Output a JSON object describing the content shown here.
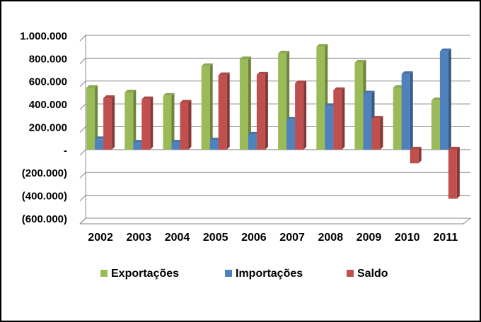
{
  "chart_data": {
    "type": "bar",
    "categories": [
      "2002",
      "2003",
      "2004",
      "2005",
      "2006",
      "2007",
      "2008",
      "2009",
      "2010",
      "2011"
    ],
    "series": [
      {
        "name": "Exportações",
        "color": "#9bbb59",
        "values": [
          540000,
          500000,
          470000,
          730000,
          790000,
          840000,
          900000,
          760000,
          540000,
          430000
        ]
      },
      {
        "name": "Importações",
        "color": "#4f81bd",
        "values": [
          90000,
          60000,
          60000,
          80000,
          130000,
          260000,
          380000,
          490000,
          660000,
          860000
        ]
      },
      {
        "name": "Saldo",
        "color": "#c0504d",
        "values": [
          450000,
          440000,
          410000,
          650000,
          655000,
          580000,
          520000,
          270000,
          -120000,
          -430000
        ]
      }
    ],
    "ylim": [
      -600000,
      1000000
    ],
    "yticks": [
      {
        "value": 1000000,
        "label": "1.000.000"
      },
      {
        "value": 800000,
        "label": "800.000"
      },
      {
        "value": 600000,
        "label": "600.000"
      },
      {
        "value": 400000,
        "label": "400.000"
      },
      {
        "value": 200000,
        "label": "200.000"
      },
      {
        "value": 0,
        "label": "-"
      },
      {
        "value": -200000,
        "label": "(200.000)"
      },
      {
        "value": -400000,
        "label": "(400.000)"
      },
      {
        "value": -600000,
        "label": "(600.000)"
      }
    ],
    "grid": true,
    "legend": "bottom"
  }
}
